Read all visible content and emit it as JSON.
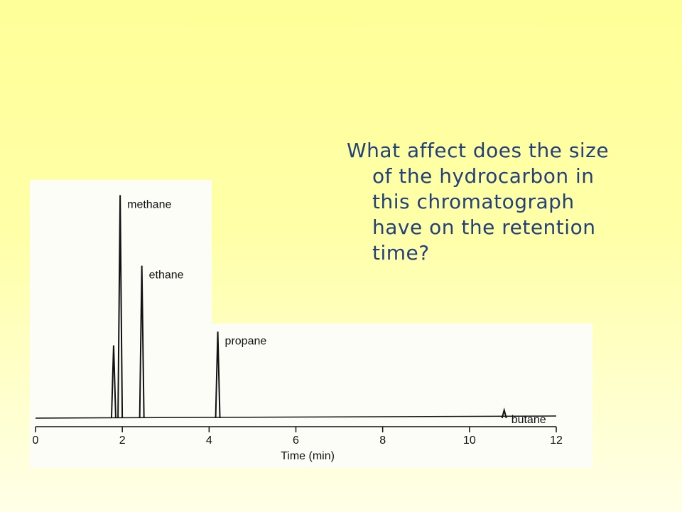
{
  "slide": {
    "question": "What affect does the size of the hydrocarbon in this chromatograph have on the retention time?"
  },
  "chart_data": {
    "type": "peaks",
    "x_label": "Time (min)",
    "categories": [
      null,
      "methane",
      "ethane",
      "propane",
      "butane"
    ],
    "x": [
      1.8,
      1.95,
      2.45,
      4.2,
      10.8
    ],
    "values": [
      32,
      98,
      67,
      38,
      3.5
    ],
    "color": "#111111",
    "xlim": [
      0,
      12
    ],
    "xticks": [
      0,
      2,
      4,
      6,
      8,
      10,
      12
    ],
    "ylim": [
      0,
      100
    ]
  }
}
